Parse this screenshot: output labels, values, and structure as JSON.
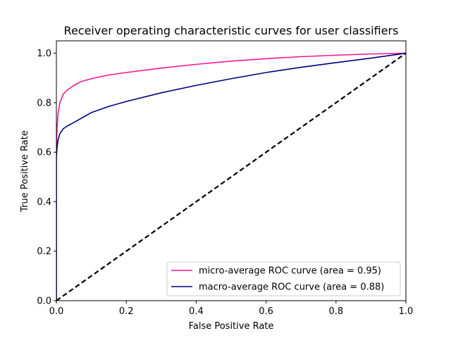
{
  "chart_data": {
    "type": "line",
    "title": "Receiver operating characteristic curves for user classifiers",
    "xlabel": "False Positive Rate",
    "ylabel": "True Positive Rate",
    "xlim": [
      0.0,
      1.0
    ],
    "ylim": [
      0.0,
      1.05
    ],
    "xticks": [
      "0.0",
      "0.2",
      "0.4",
      "0.6",
      "0.8",
      "1.0"
    ],
    "yticks": [
      "0.0",
      "0.2",
      "0.4",
      "0.6",
      "0.8",
      "1.0"
    ],
    "grid": false,
    "legend_position": "lower-right",
    "series": [
      {
        "name": "micro-average ROC curve (area = 0.95)",
        "color": "#ff1493",
        "style": "solid",
        "x": [
          0.0,
          0.0,
          0.002,
          0.005,
          0.01,
          0.02,
          0.03,
          0.05,
          0.07,
          0.1,
          0.15,
          0.2,
          0.3,
          0.4,
          0.5,
          0.6,
          0.7,
          0.8,
          0.9,
          1.0
        ],
        "y": [
          0.0,
          0.6,
          0.7,
          0.76,
          0.8,
          0.835,
          0.85,
          0.87,
          0.885,
          0.897,
          0.912,
          0.922,
          0.94,
          0.955,
          0.968,
          0.978,
          0.986,
          0.992,
          0.997,
          1.0
        ]
      },
      {
        "name": "macro-average ROC curve (area = 0.88)",
        "color": "#000080",
        "style": "solid",
        "x": [
          0.0,
          0.0,
          0.002,
          0.005,
          0.01,
          0.02,
          0.03,
          0.05,
          0.075,
          0.1,
          0.15,
          0.2,
          0.3,
          0.4,
          0.5,
          0.6,
          0.7,
          0.8,
          0.9,
          1.0
        ],
        "y": [
          0.0,
          0.58,
          0.62,
          0.65,
          0.675,
          0.695,
          0.705,
          0.72,
          0.74,
          0.76,
          0.785,
          0.805,
          0.84,
          0.87,
          0.897,
          0.922,
          0.943,
          0.962,
          0.98,
          1.0
        ]
      },
      {
        "name": "",
        "color": "#000000",
        "style": "dashed",
        "x": [
          0.0,
          1.0
        ],
        "y": [
          0.0,
          1.0
        ]
      }
    ]
  }
}
